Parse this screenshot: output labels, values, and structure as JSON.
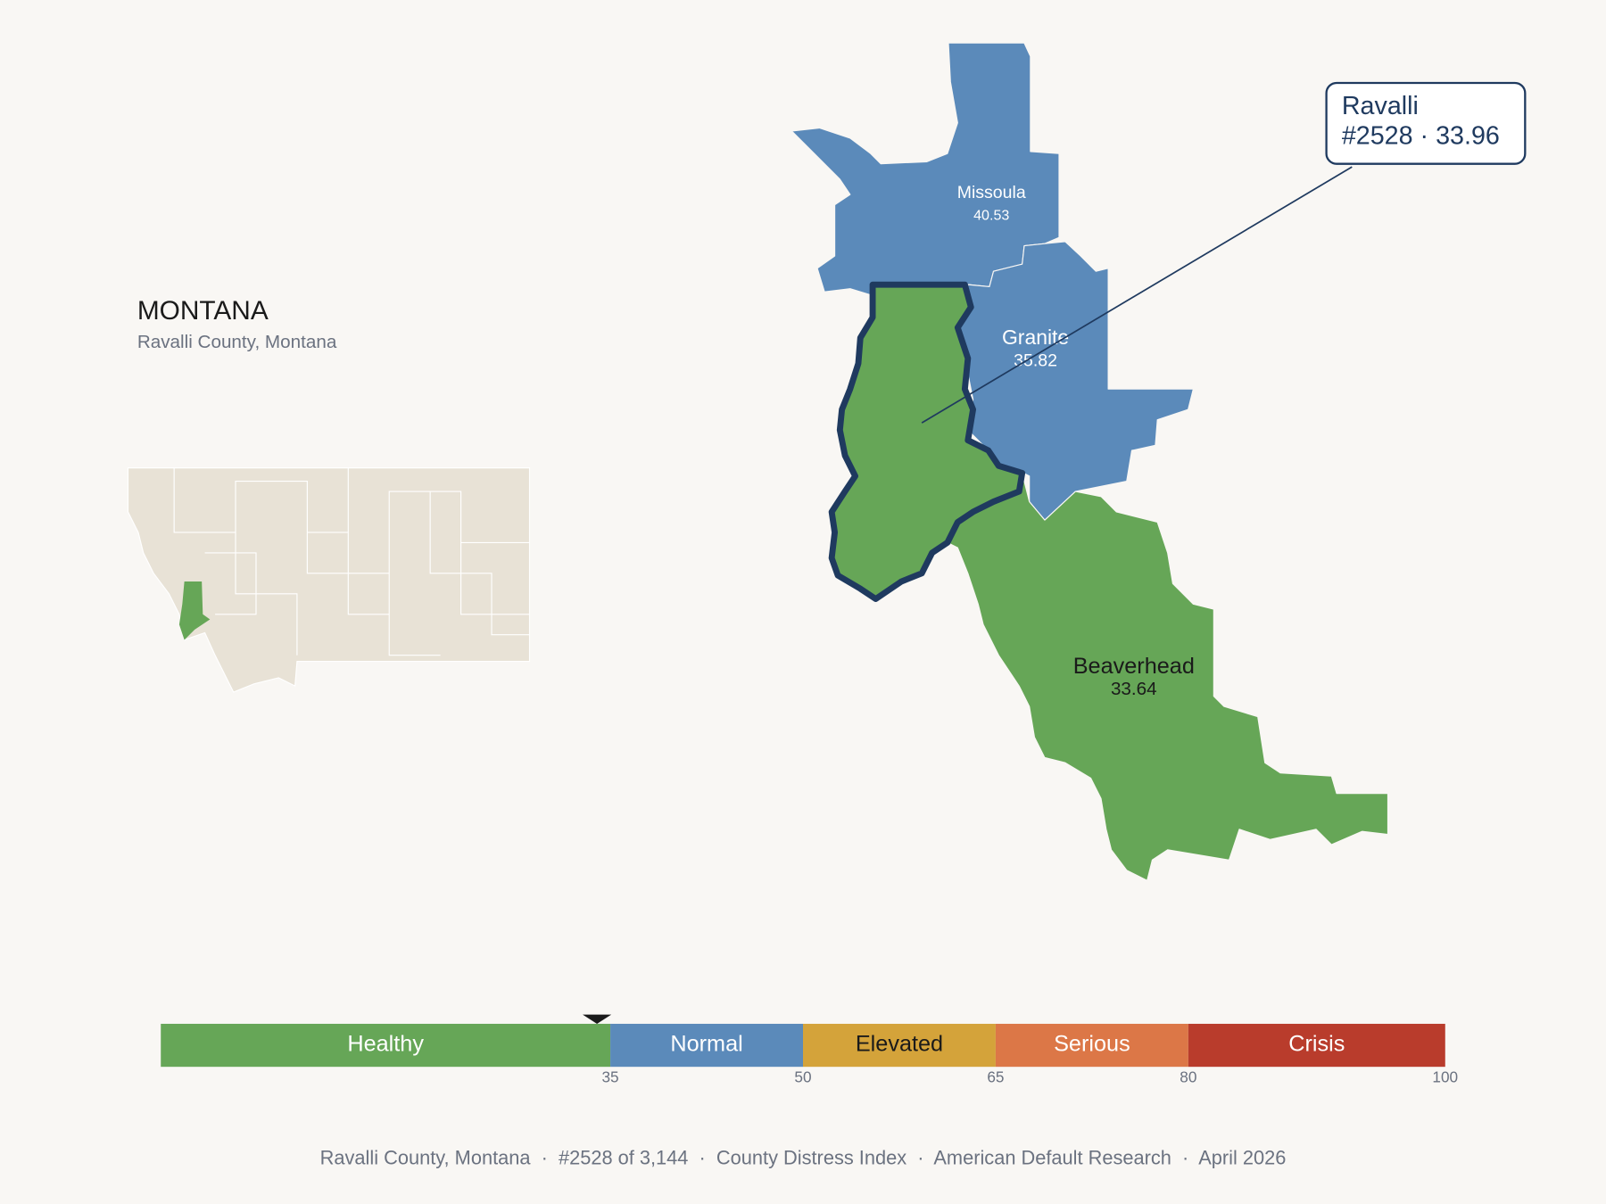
{
  "header": {
    "title": "MONTANA",
    "subtitle": "Ravalli County, Montana"
  },
  "counties": [
    {
      "name": "Missoula",
      "value": 40.53,
      "color": "#5b8aba",
      "text_color": "#ffffff"
    },
    {
      "name": "Granite",
      "value": 35.82,
      "color": "#5b8aba",
      "text_color": "#ffffff"
    },
    {
      "name": "Beaverhead",
      "value": 33.64,
      "color": "#66a657",
      "text_color": "#1a1a1a"
    },
    {
      "name": "Ravalli",
      "value": 33.96,
      "color": "#66a657",
      "text_color": "#1f3a5f"
    }
  ],
  "callout": {
    "detail": "#2528 · 33.96"
  },
  "scale": {
    "min": 0,
    "bands": [
      {
        "label": "Healthy",
        "to": 35,
        "color": "#66a657",
        "text_color": "#ffffff"
      },
      {
        "label": "Normal",
        "to": 50,
        "color": "#5b8aba",
        "text_color": "#ffffff"
      },
      {
        "label": "Elevated",
        "to": 65,
        "color": "#d4a33a",
        "text_color": "#1a1a1a"
      },
      {
        "label": "Serious",
        "to": 80,
        "color": "#dc7747",
        "text_color": "#ffffff"
      },
      {
        "label": "Crisis",
        "to": 100,
        "color": "#b93c2c",
        "text_color": "#ffffff"
      }
    ]
  },
  "footer": "Ravalli County, Montana  ·  #2528 of 3,144  ·  County Distress Index  ·  American Default Research  ·  April 2026"
}
